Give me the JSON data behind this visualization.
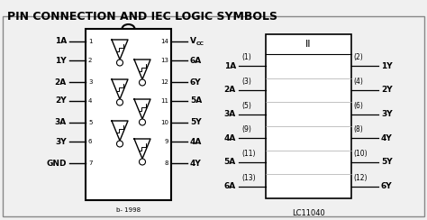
{
  "title": "PIN CONNECTION AND IEC LOGIC SYMBOLS",
  "bg_color": "#f0f0f0",
  "border_color": "#000000",
  "title_fontsize": 9,
  "label_fontsize": 6.5,
  "left_labels": [
    "1A",
    "1Y",
    "2A",
    "2Y",
    "3A",
    "3Y",
    "GND"
  ],
  "left_pin_nums": [
    "1",
    "2",
    "3",
    "4",
    "5",
    "6",
    "7"
  ],
  "right_labels": [
    "VCC",
    "6A",
    "6Y",
    "5A",
    "5Y",
    "4A",
    "4Y"
  ],
  "right_pin_nums": [
    "14",
    "13",
    "12",
    "11",
    "10",
    "9",
    "8"
  ],
  "iec_inputs": [
    {
      "label": "1A",
      "pin": "(1)"
    },
    {
      "label": "2A",
      "pin": "(3)"
    },
    {
      "label": "3A",
      "pin": "(5)"
    },
    {
      "label": "4A",
      "pin": "(9)"
    },
    {
      "label": "5A",
      "pin": "(11)"
    },
    {
      "label": "6A",
      "pin": "(13)"
    }
  ],
  "iec_outputs": [
    {
      "label": "1Y",
      "pin": "(2)"
    },
    {
      "label": "2Y",
      "pin": "(4)"
    },
    {
      "label": "3Y",
      "pin": "(6)"
    },
    {
      "label": "4Y",
      "pin": "(8)"
    },
    {
      "label": "5Y",
      "pin": "(10)"
    },
    {
      "label": "6Y",
      "pin": "(12)"
    }
  ],
  "iec_label": "LC11040"
}
